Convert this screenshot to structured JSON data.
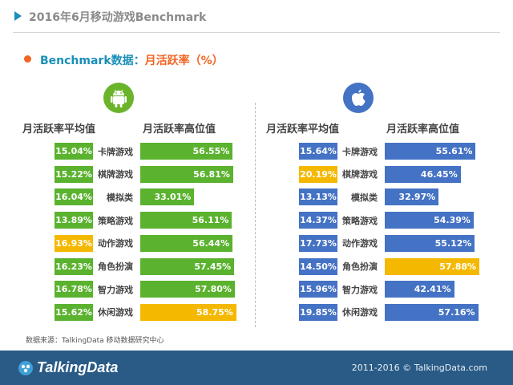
{
  "header": {
    "title": "2016年6月移动游戏Benchmark"
  },
  "section": {
    "title_part1": "Benchmark数据：",
    "title_part2": "月活跃率（%）"
  },
  "columns": {
    "avg": "月活跃率平均值",
    "high": "月活跃率高位值"
  },
  "source": "数据来源：TalkingData 移动数据研究中心",
  "footer": {
    "logo": "TalkingData",
    "copyright": "2011-2016 © TalkingData.com"
  },
  "colors": {
    "android": "#5ab22e",
    "ios": "#4472c4",
    "highlight": "#f5b800"
  },
  "chart_data": [
    {
      "type": "bar",
      "platform": "Android",
      "categories": [
        "卡牌游戏",
        "棋牌游戏",
        "模拟类",
        "策略游戏",
        "动作游戏",
        "角色扮演",
        "智力游戏",
        "休闲游戏"
      ],
      "series": [
        {
          "name": "月活跃率平均值",
          "values": [
            15.04,
            15.22,
            16.04,
            13.89,
            16.93,
            16.23,
            16.78,
            15.62
          ],
          "labels": [
            "15.04%",
            "15.22%",
            "16.04%",
            "13.89%",
            "16.93%",
            "16.23%",
            "16.78%",
            "15.62%"
          ],
          "highlight_index": 4
        },
        {
          "name": "月活跃率高位值",
          "values": [
            56.55,
            56.81,
            33.01,
            56.11,
            56.44,
            57.45,
            57.8,
            58.75
          ],
          "labels": [
            "56.55%",
            "56.81%",
            "33.01%",
            "56.11%",
            "56.44%",
            "57.45%",
            "57.80%",
            "58.75%"
          ],
          "highlight_index": 7
        }
      ]
    },
    {
      "type": "bar",
      "platform": "iOS",
      "categories": [
        "卡牌游戏",
        "棋牌游戏",
        "模拟类",
        "策略游戏",
        "动作游戏",
        "角色扮演",
        "智力游戏",
        "休闲游戏"
      ],
      "series": [
        {
          "name": "月活跃率平均值",
          "values": [
            15.64,
            20.19,
            13.13,
            14.37,
            17.73,
            14.5,
            15.96,
            19.85
          ],
          "labels": [
            "15.64%",
            "20.19%",
            "13.13%",
            "14.37%",
            "17.73%",
            "14.50%",
            "15.96%",
            "19.85%"
          ],
          "highlight_index": 1
        },
        {
          "name": "月活跃率高位值",
          "values": [
            55.61,
            46.45,
            32.97,
            54.39,
            55.12,
            57.88,
            42.41,
            57.16
          ],
          "labels": [
            "55.61%",
            "46.45%",
            "32.97%",
            "54.39%",
            "55.12%",
            "57.88%",
            "42.41%",
            "57.16%"
          ],
          "highlight_index": 5
        }
      ]
    }
  ]
}
